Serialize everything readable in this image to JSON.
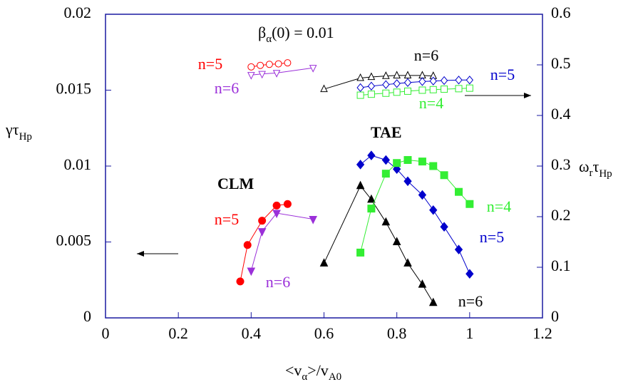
{
  "chart_data": {
    "type": "scatter",
    "title_parts": [
      "β",
      "α",
      "(0) = 0.01"
    ],
    "xlabel_parts": [
      "<v",
      "α",
      ">/v",
      "A0"
    ],
    "ylabel_parts": [
      "γτ",
      "Hp"
    ],
    "y2label_parts": [
      "ω",
      "r",
      "τ",
      "Hp"
    ],
    "annotations": [
      "CLM",
      "TAE"
    ],
    "xlim": [
      0,
      1.2
    ],
    "xticks": [
      0,
      0.2,
      0.4,
      0.6,
      0.8,
      1,
      1.2
    ],
    "ylim": [
      0,
      0.02
    ],
    "yticks": [
      0,
      0.005,
      0.01,
      0.015,
      0.02
    ],
    "y2lim": [
      0,
      0.6
    ],
    "y2ticks": [
      0,
      0.1,
      0.2,
      0.3,
      0.4,
      0.5,
      0.6
    ],
    "series": [
      {
        "name": "n=5",
        "color": "#ff0000",
        "marker": "circle",
        "filled": true,
        "x": [
          0.37,
          0.39,
          0.43,
          0.47,
          0.5
        ],
        "values": [
          0.0024,
          0.0048,
          0.0064,
          0.0074,
          0.0075
        ]
      },
      {
        "name": "n=6",
        "color": "#9b30d9",
        "marker": "triangle-down",
        "filled": true,
        "x": [
          0.4,
          0.43,
          0.47,
          0.57
        ],
        "values": [
          0.0031,
          0.0057,
          0.0069,
          0.0065
        ]
      },
      {
        "name": "n=6",
        "color": "#000000",
        "marker": "triangle-up",
        "filled": true,
        "x": [
          0.6,
          0.7,
          0.73,
          0.77,
          0.8,
          0.83,
          0.87,
          0.9
        ],
        "values": [
          0.0036,
          0.0087,
          0.0078,
          0.0063,
          0.005,
          0.0036,
          0.0022,
          0.001
        ]
      },
      {
        "name": "n=5",
        "color": "#0000cc",
        "marker": "diamond",
        "filled": true,
        "x": [
          0.7,
          0.73,
          0.77,
          0.8,
          0.83,
          0.87,
          0.9,
          0.93,
          0.97,
          1.0
        ],
        "values": [
          0.0101,
          0.0107,
          0.0104,
          0.0098,
          0.009,
          0.0081,
          0.0071,
          0.006,
          0.0045,
          0.0029
        ]
      },
      {
        "name": "n=4",
        "color": "#33ee33",
        "marker": "square",
        "filled": true,
        "x": [
          0.7,
          0.73,
          0.77,
          0.8,
          0.83,
          0.87,
          0.9,
          0.93,
          0.97,
          1.0
        ],
        "values": [
          0.0043,
          0.0072,
          0.0095,
          0.0102,
          0.0104,
          0.0103,
          0.01,
          0.0094,
          0.0083,
          0.0075
        ]
      },
      {
        "name": "n=5",
        "color": "#ff0000",
        "marker": "circle",
        "filled": false,
        "axis": "y2",
        "x": [
          0.4,
          0.425,
          0.45,
          0.475,
          0.5
        ],
        "values": [
          0.496,
          0.499,
          0.501,
          0.502,
          0.504
        ]
      },
      {
        "name": "n=6",
        "color": "#9b30d9",
        "marker": "triangle-down",
        "filled": false,
        "axis": "y2",
        "x": [
          0.4,
          0.43,
          0.47,
          0.57
        ],
        "values": [
          0.48,
          0.482,
          0.484,
          0.494
        ]
      },
      {
        "name": "n=6",
        "color": "#000000",
        "marker": "triangle-up",
        "filled": false,
        "axis": "y2",
        "x": [
          0.6,
          0.7,
          0.73,
          0.77,
          0.8,
          0.83,
          0.87,
          0.9
        ],
        "values": [
          0.452,
          0.474,
          0.476,
          0.478,
          0.479,
          0.479,
          0.479,
          0.478
        ]
      },
      {
        "name": "n=5",
        "color": "#0000cc",
        "marker": "diamond",
        "filled": false,
        "axis": "y2",
        "x": [
          0.7,
          0.73,
          0.77,
          0.8,
          0.83,
          0.87,
          0.9,
          0.93,
          0.97,
          1.0
        ],
        "values": [
          0.455,
          0.458,
          0.461,
          0.463,
          0.465,
          0.467,
          0.468,
          0.469,
          0.47,
          0.47
        ]
      },
      {
        "name": "n=4",
        "color": "#33ee33",
        "marker": "square",
        "filled": false,
        "axis": "y2",
        "x": [
          0.7,
          0.73,
          0.77,
          0.8,
          0.83,
          0.87,
          0.9,
          0.93,
          0.97,
          1.0
        ],
        "values": [
          0.44,
          0.442,
          0.444,
          0.446,
          0.448,
          0.45,
          0.451,
          0.452,
          0.453,
          0.454
        ]
      }
    ]
  }
}
